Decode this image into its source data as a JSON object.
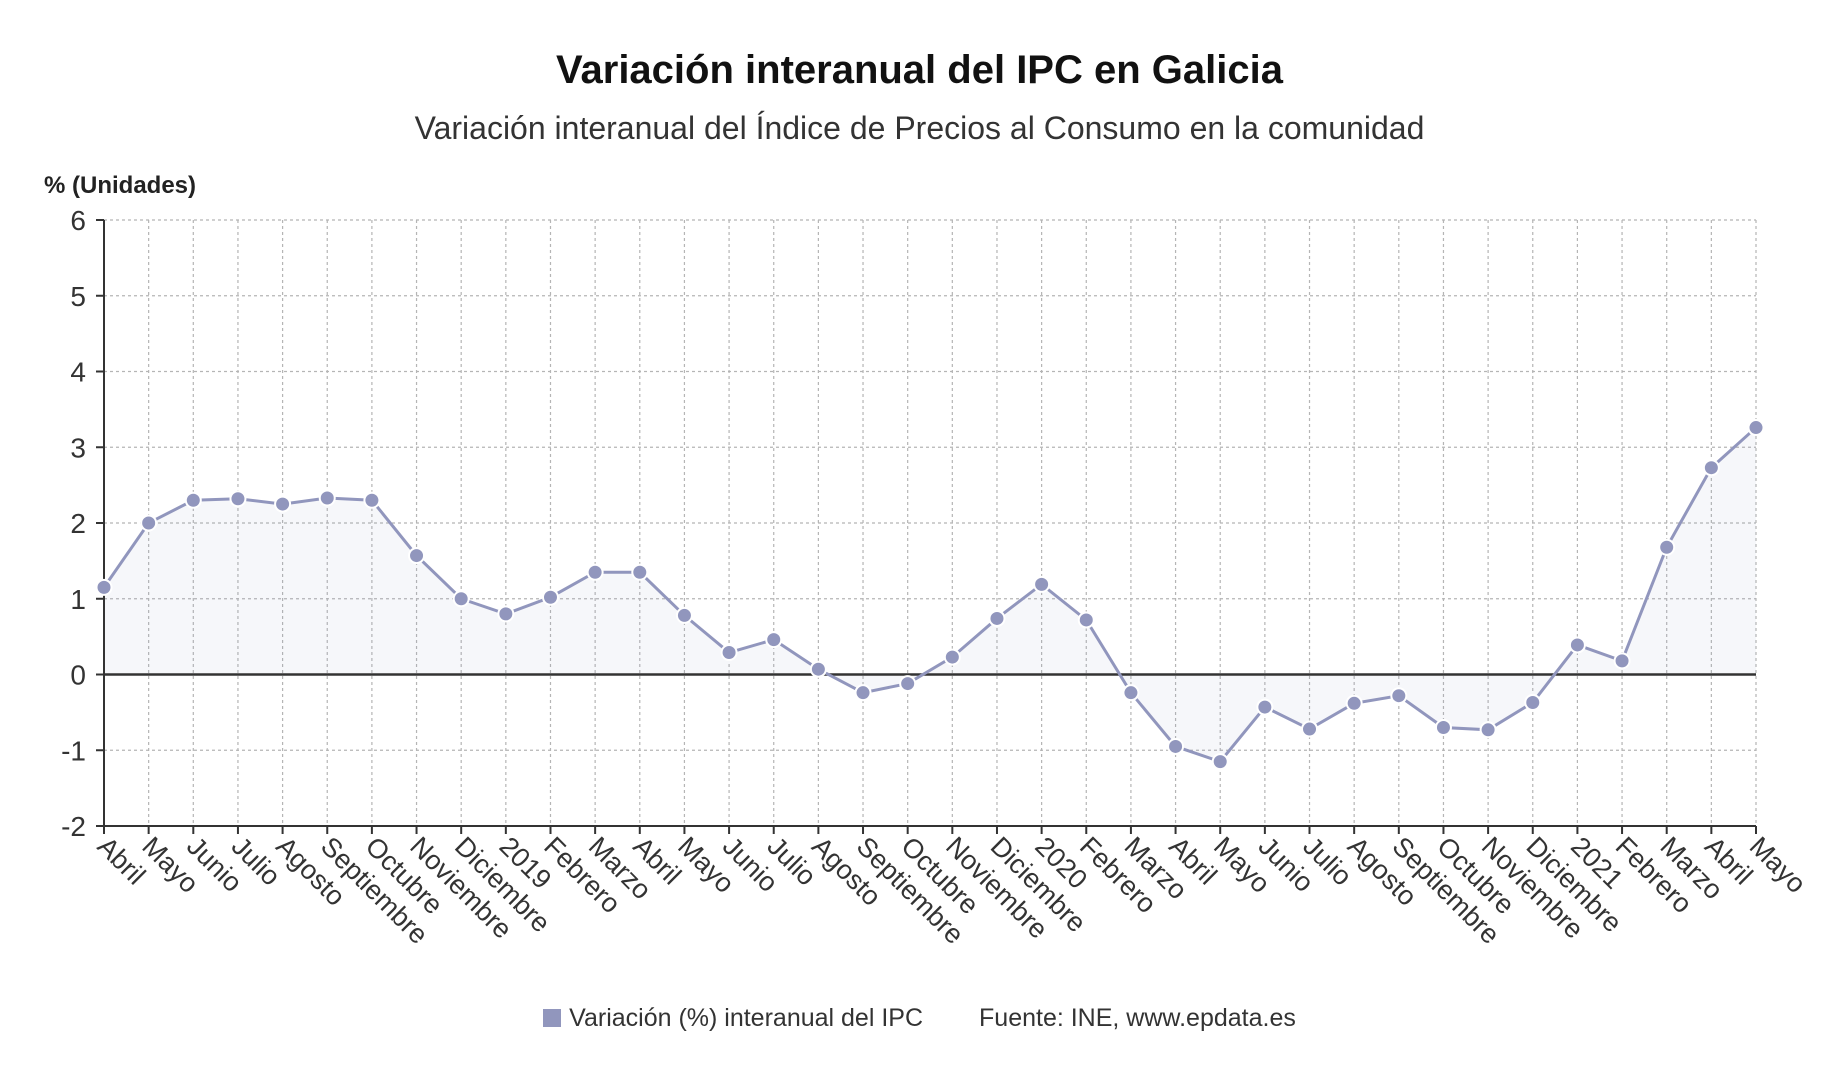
{
  "title": "Variación interanual del IPC en Galicia",
  "subtitle": "Variación interanual del Índice de Precios al Consumo en la comunidad",
  "legend": {
    "label": "Variación (%) interanual del IPC",
    "color": "#9196bd"
  },
  "source": "Fuente: INE, www.epdata.es",
  "chart_data": {
    "type": "area",
    "ylabel": "% (Unidades)",
    "ylim": [
      -2,
      6
    ],
    "yticks": [
      6,
      5,
      4,
      3,
      2,
      1,
      0,
      -1,
      -2
    ],
    "grid": true,
    "legend_position": "bottom",
    "categories": [
      "Abril",
      "Mayo",
      "Junio",
      "Julio",
      "Agosto",
      "Septiembre",
      "Octubre",
      "Noviembre",
      "Diciembre",
      "2019",
      "Febrero",
      "Marzo",
      "Abril",
      "Mayo",
      "Junio",
      "Julio",
      "Agosto",
      "Septiembre",
      "Octubre",
      "Noviembre",
      "Diciembre",
      "2020",
      "Febrero",
      "Marzo",
      "Abril",
      "Mayo",
      "Junio",
      "Julio",
      "Agosto",
      "Septiembre",
      "Octubre",
      "Noviembre",
      "Diciembre",
      "2021",
      "Febrero",
      "Marzo",
      "Abril",
      "Mayo"
    ],
    "series": [
      {
        "name": "Variación (%) interanual del IPC",
        "color": "#9196bd",
        "values": [
          1.15,
          2.0,
          2.3,
          2.32,
          2.25,
          2.33,
          2.3,
          1.57,
          1.0,
          0.8,
          1.02,
          1.35,
          1.35,
          0.78,
          0.29,
          0.46,
          0.07,
          -0.24,
          -0.12,
          0.23,
          0.74,
          1.19,
          0.72,
          -0.24,
          -0.95,
          -1.15,
          -0.43,
          -0.72,
          -0.38,
          -0.28,
          -0.7,
          -0.73,
          -0.37,
          0.39,
          0.18,
          1.68,
          2.73,
          3.26
        ]
      }
    ]
  }
}
